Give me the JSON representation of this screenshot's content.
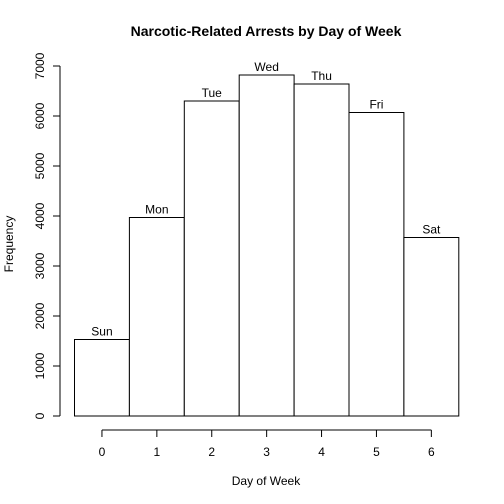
{
  "chart_data": {
    "type": "bar",
    "title": "Narcotic-Related Arrests  by Day of Week",
    "xlabel": "Day of Week",
    "ylabel": "Frequency",
    "categories": [
      "Sun",
      "Mon",
      "Tue",
      "Wed",
      "Thu",
      "Fri",
      "Sat"
    ],
    "x_ticks": [
      "0",
      "1",
      "2",
      "3",
      "4",
      "5",
      "6"
    ],
    "values": [
      1530,
      3970,
      6300,
      6820,
      6640,
      6070,
      3570
    ],
    "y_ticks": [
      "0",
      "1000",
      "2000",
      "3000",
      "4000",
      "5000",
      "6000",
      "7000"
    ],
    "ylim": [
      0,
      7000
    ],
    "xlim": [
      -0.5,
      6.5
    ],
    "bar_fill": "#ffffff",
    "bar_stroke": "#000000",
    "grid": false,
    "legend": "none"
  }
}
